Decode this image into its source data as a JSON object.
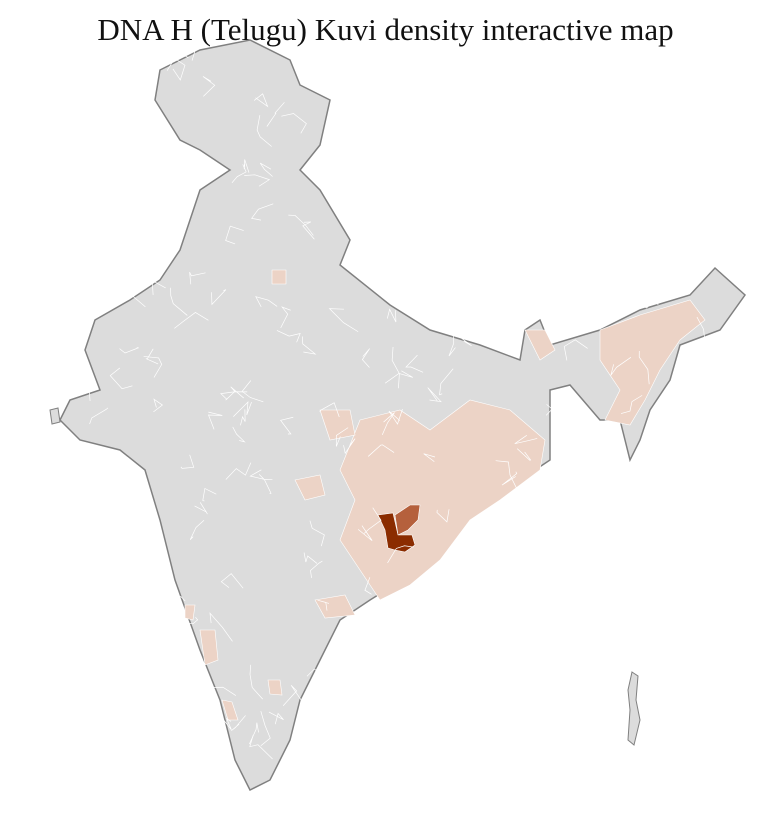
{
  "title": "DNA H (Telugu) Kuvi density interactive map",
  "colors": {
    "no_data": "#dcdcdc",
    "low_density": "#ecd3c6",
    "medium_density": "#b5603c",
    "high_density": "#8b2c00",
    "state_border": "#808080",
    "district_border": "#ffffff"
  }
}
